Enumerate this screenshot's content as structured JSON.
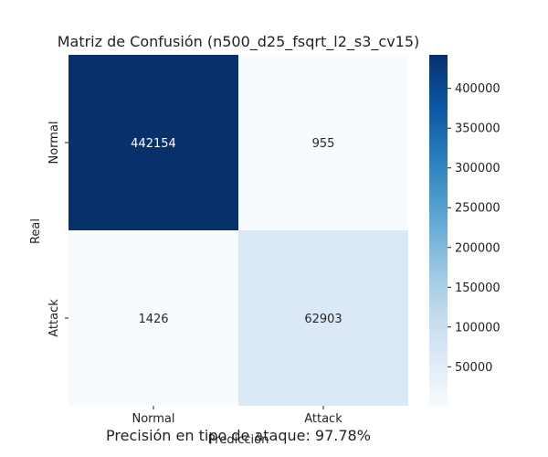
{
  "chart_data": {
    "type": "heatmap",
    "title": "Matriz de Confusión (n500_d25_fsqrt_l2_s3_cv15)",
    "xlabel": "Predicción",
    "ylabel": "Real",
    "x_categories": [
      "Normal",
      "Attack"
    ],
    "y_categories": [
      "Normal",
      "Attack"
    ],
    "values": [
      [
        442154,
        955
      ],
      [
        1426,
        62903
      ]
    ],
    "colorbar": {
      "ticks": [
        50000,
        100000,
        150000,
        200000,
        250000,
        300000,
        350000,
        400000
      ],
      "range": [
        955,
        442154
      ],
      "colormap": "Blues"
    }
  },
  "footer": {
    "caption": "Precisión en tipo de ataque: 97.78%"
  },
  "colors": {
    "cell_max": "#08306b",
    "cell_min": "#f7fbff",
    "text_dark": "#262626",
    "text_light": "#ffffff"
  }
}
